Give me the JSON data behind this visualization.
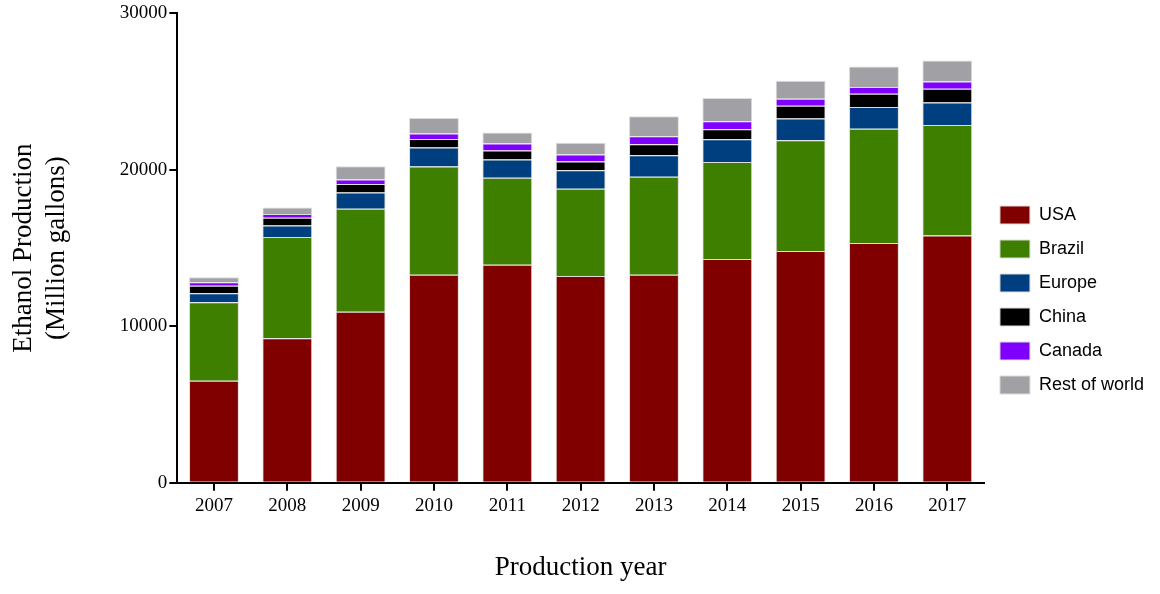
{
  "chart_data": {
    "type": "bar",
    "stacked": true,
    "xlabel": "Production year",
    "ylabel": "Ethanol Production\n(Million gallons)",
    "categories": [
      "2007",
      "2008",
      "2009",
      "2010",
      "2011",
      "2012",
      "2013",
      "2014",
      "2015",
      "2016",
      "2017"
    ],
    "series": [
      {
        "name": "USA",
        "color": "#800000",
        "values": [
          6520,
          9240,
          10940,
          13300,
          13930,
          13220,
          13290,
          14310,
          14810,
          15330,
          15800
        ]
      },
      {
        "name": "Brazil",
        "color": "#3f7f00",
        "values": [
          5020,
          6470,
          6580,
          6920,
          5570,
          5580,
          6270,
          6190,
          7090,
          7300,
          7060
        ]
      },
      {
        "name": "Europe",
        "color": "#003f7f",
        "values": [
          570,
          730,
          1040,
          1210,
          1170,
          1180,
          1370,
          1450,
          1390,
          1380,
          1440
        ]
      },
      {
        "name": "China",
        "color": "#000000",
        "values": [
          490,
          500,
          540,
          540,
          560,
          560,
          700,
          640,
          810,
          850,
          880
        ]
      },
      {
        "name": "Canada",
        "color": "#7f00ff",
        "values": [
          210,
          240,
          290,
          360,
          460,
          450,
          520,
          510,
          440,
          440,
          460
        ]
      },
      {
        "name": "Rest of world",
        "color": "#a0a0a5",
        "values": [
          320,
          420,
          840,
          990,
          700,
          750,
          1270,
          1490,
          1150,
          1300,
          1350
        ]
      }
    ],
    "ylim": [
      0,
      30000
    ],
    "yticks": [
      0,
      10000,
      20000,
      30000
    ],
    "grid": false,
    "legend": "right"
  }
}
